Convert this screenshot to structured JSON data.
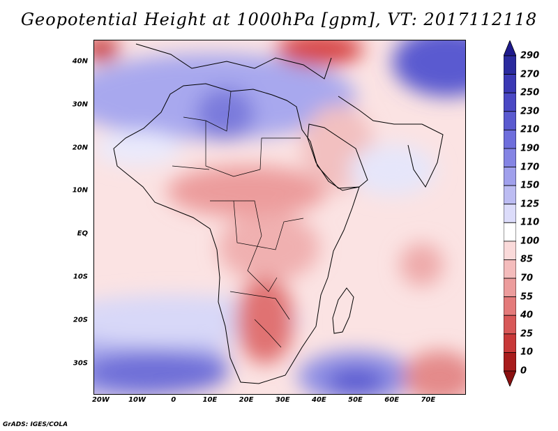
{
  "title": "Geopotential Height at 1000hPa [gpm], VT: 2017112118",
  "credit": "GrADS: IGES/COLA",
  "map": {
    "projection": "latlon",
    "lon_range": [
      -22,
      80
    ],
    "lat_range": [
      -37,
      45
    ],
    "lat_ticks": [
      {
        "value": 40,
        "label": "40N"
      },
      {
        "value": 30,
        "label": "30N"
      },
      {
        "value": 20,
        "label": "20N"
      },
      {
        "value": 10,
        "label": "10N"
      },
      {
        "value": 0,
        "label": "EQ"
      },
      {
        "value": -10,
        "label": "10S"
      },
      {
        "value": -20,
        "label": "20S"
      },
      {
        "value": -30,
        "label": "30S"
      }
    ],
    "lon_ticks": [
      {
        "value": -20,
        "label": "20W"
      },
      {
        "value": -10,
        "label": "10W"
      },
      {
        "value": 0,
        "label": "0"
      },
      {
        "value": 10,
        "label": "10E"
      },
      {
        "value": 20,
        "label": "20E"
      },
      {
        "value": 30,
        "label": "30E"
      },
      {
        "value": 40,
        "label": "40E"
      },
      {
        "value": 50,
        "label": "50E"
      },
      {
        "value": 60,
        "label": "60E"
      },
      {
        "value": 70,
        "label": "70E"
      }
    ]
  },
  "colorbar": {
    "labels": [
      "290",
      "270",
      "250",
      "230",
      "210",
      "190",
      "170",
      "150",
      "125",
      "110",
      "100",
      "85",
      "70",
      "55",
      "40",
      "25",
      "10",
      "0"
    ],
    "colors": [
      "#1e1a8c",
      "#2a2a9e",
      "#3a38b4",
      "#4a48c4",
      "#5a5ad0",
      "#6e6edc",
      "#8484e4",
      "#a0a0ec",
      "#bcbcf2",
      "#dcdcfa",
      "#ffffff",
      "#fadada",
      "#f4bcbc",
      "#ec9c9c",
      "#e47a7a",
      "#d85858",
      "#c83838",
      "#a81c1c",
      "#8a1010"
    ]
  },
  "field": {
    "base_color": "#fbe3e3",
    "blobs": [
      {
        "lon": -15,
        "lat": -30,
        "r_lon": 30,
        "r_lat": 8,
        "color": "#a8a8ec"
      },
      {
        "lon": -5,
        "lat": -32,
        "r_lon": 20,
        "r_lat": 5,
        "color": "#7070d8"
      },
      {
        "lon": 0,
        "lat": -20,
        "r_lon": 35,
        "r_lat": 6,
        "color": "#d8d8f8"
      },
      {
        "lon": 50,
        "lat": -33,
        "r_lon": 16,
        "r_lat": 6,
        "color": "#9090e4"
      },
      {
        "lon": 50,
        "lat": -34,
        "r_lon": 8,
        "r_lat": 3,
        "color": "#5a5ad0"
      },
      {
        "lon": 73,
        "lat": -33,
        "r_lon": 10,
        "r_lat": 6,
        "color": "#e48a8a"
      },
      {
        "lon": 10,
        "lat": 32,
        "r_lon": 40,
        "r_lat": 10,
        "color": "#a8a8ee"
      },
      {
        "lon": 14,
        "lat": 28,
        "r_lon": 8,
        "r_lat": 6,
        "color": "#7a7adc"
      },
      {
        "lon": -10,
        "lat": 20,
        "r_lon": 12,
        "r_lat": 4,
        "color": "#eaeafc"
      },
      {
        "lon": 75,
        "lat": 40,
        "r_lon": 15,
        "r_lat": 8,
        "color": "#5a5ad0"
      },
      {
        "lon": 40,
        "lat": 43,
        "r_lon": 12,
        "r_lat": 4,
        "color": "#d84848"
      },
      {
        "lon": -20,
        "lat": 43,
        "r_lon": 5,
        "r_lat": 3,
        "color": "#c84040"
      },
      {
        "lon": 20,
        "lat": 10,
        "r_lon": 22,
        "r_lat": 6,
        "color": "#ec9c9c"
      },
      {
        "lon": 26,
        "lat": -3,
        "r_lon": 14,
        "r_lat": 8,
        "color": "#f0b0b0"
      },
      {
        "lon": 25,
        "lat": -20,
        "r_lon": 8,
        "r_lat": 10,
        "color": "#e07272"
      },
      {
        "lon": 45,
        "lat": 20,
        "r_lon": 10,
        "r_lat": 10,
        "color": "#f2c0c0"
      },
      {
        "lon": 68,
        "lat": -7,
        "r_lon": 6,
        "r_lat": 5,
        "color": "#eeaaaa"
      },
      {
        "lon": 60,
        "lat": 15,
        "r_lon": 12,
        "r_lat": 6,
        "color": "#e6e6fa"
      }
    ]
  }
}
